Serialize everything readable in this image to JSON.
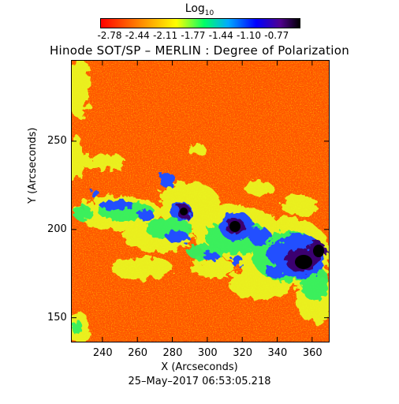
{
  "colorbar": {
    "title_main": "Log",
    "title_sub": "10",
    "tick_labels": [
      "-2.78",
      "-2.44",
      "-2.11",
      "-1.77",
      "-1.44",
      "-1.10",
      "-0.77"
    ],
    "colors": [
      "#ff0000",
      "#ff8000",
      "#ffff00",
      "#00ff40",
      "#00c0ff",
      "#0000ff",
      "#400080",
      "#000000"
    ]
  },
  "plot": {
    "title": "Hinode SOT/SP – MERLIN : Degree of Polarization",
    "x_label": "X (Arcseconds)",
    "y_label": "Y (Arcseconds)",
    "x_ticks": [
      "240",
      "260",
      "280",
      "300",
      "320",
      "340",
      "360"
    ],
    "y_ticks": [
      "150",
      "200",
      "250"
    ],
    "date": "25–May–2017  06:53:05.218"
  }
}
